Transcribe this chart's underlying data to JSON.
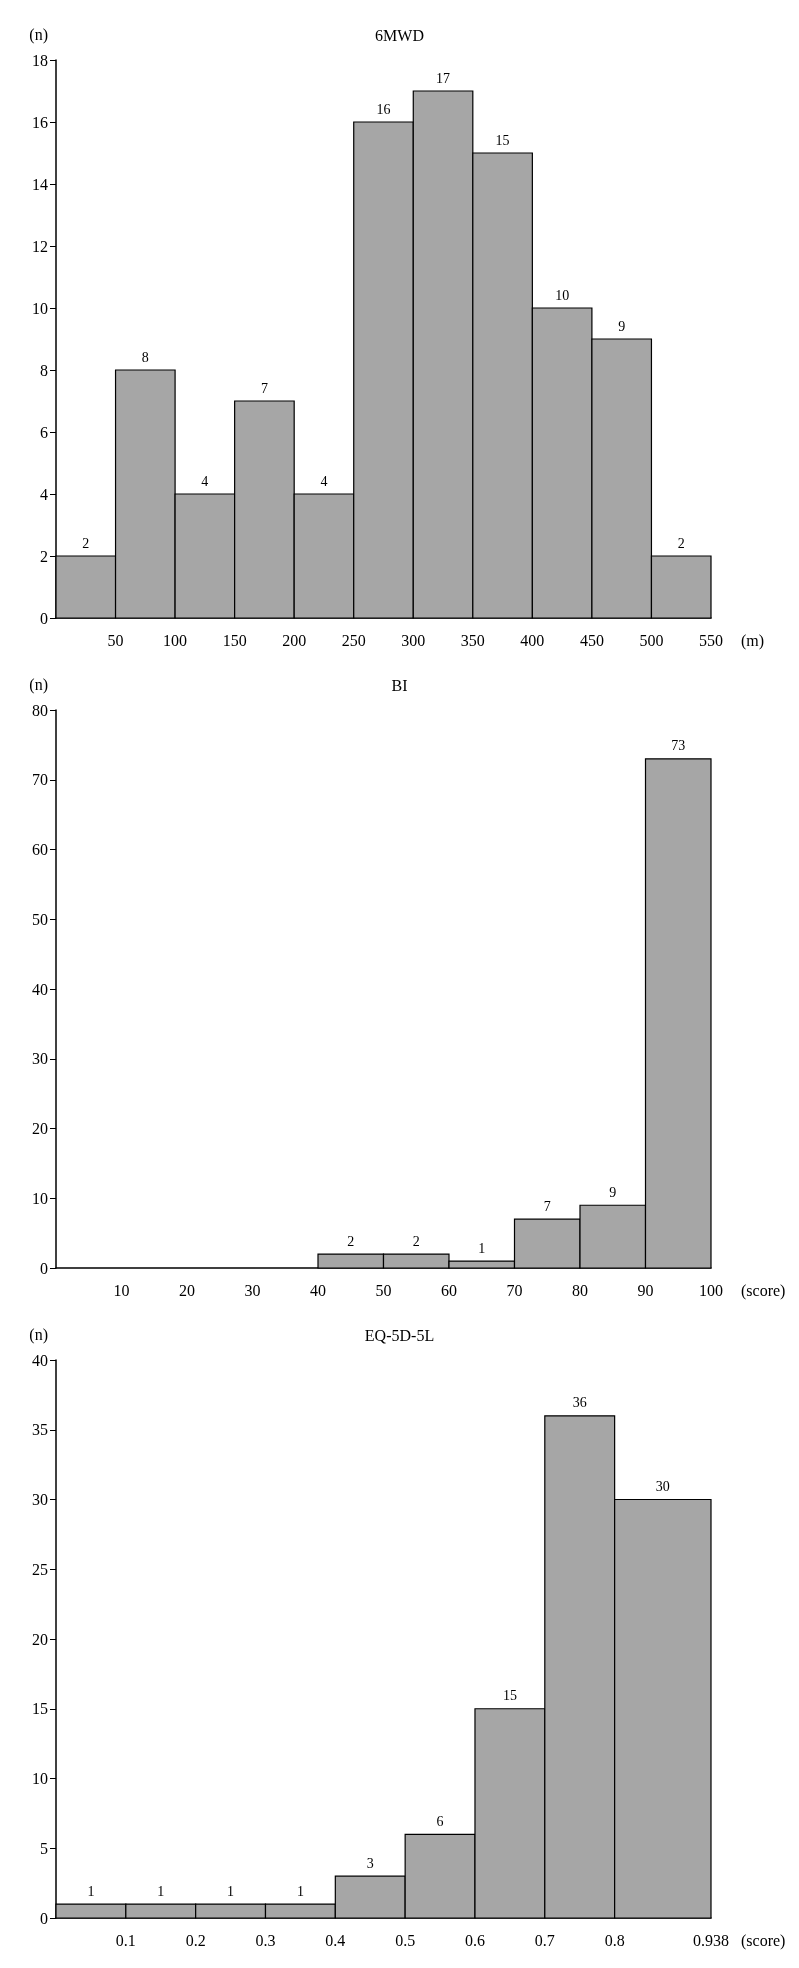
{
  "chart_data": [
    {
      "type": "histogram",
      "title": "6MWD",
      "xlabel": "(m)",
      "ylabel": "(n)",
      "bins": [
        0,
        50,
        100,
        150,
        200,
        250,
        300,
        350,
        400,
        450,
        500,
        550
      ],
      "values": [
        2,
        8,
        4,
        7,
        4,
        16,
        17,
        15,
        10,
        9,
        2
      ],
      "color": "#a6a6a6",
      "xlim": [
        0,
        550
      ],
      "xticks": [
        50,
        100,
        150,
        200,
        250,
        300,
        350,
        400,
        450,
        500,
        550
      ],
      "ylim": [
        0,
        18
      ],
      "yticks": [
        0,
        2,
        4,
        6,
        8,
        10,
        12,
        14,
        16,
        18
      ],
      "data_labels": true,
      "grid": false
    },
    {
      "type": "histogram",
      "title": "BI",
      "xlabel": "(score)",
      "ylabel": "(n)",
      "bins": [
        0,
        10,
        20,
        30,
        40,
        50,
        60,
        70,
        80,
        90,
        100
      ],
      "values": [
        0,
        0,
        0,
        0,
        2,
        2,
        1,
        7,
        9,
        73
      ],
      "value_labels": [
        null,
        null,
        null,
        null,
        "2",
        "2",
        "1",
        "7",
        "9",
        "73"
      ],
      "color": "#a6a6a6",
      "xlim": [
        0,
        100
      ],
      "xticks": [
        10,
        20,
        30,
        40,
        50,
        60,
        70,
        80,
        90,
        100
      ],
      "ylim": [
        0,
        80
      ],
      "yticks": [
        0,
        10,
        20,
        30,
        40,
        50,
        60,
        70,
        80
      ],
      "grid": false
    },
    {
      "type": "histogram",
      "title": "EQ-5D-5L",
      "xlabel": "(score)",
      "ylabel": "(n)",
      "bins": [
        0,
        0.1,
        0.2,
        0.3,
        0.4,
        0.5,
        0.6,
        0.7,
        0.8,
        0.938
      ],
      "values": [
        1,
        1,
        1,
        1,
        3,
        6,
        15,
        36,
        30
      ],
      "color": "#a6a6a6",
      "xlim": [
        0,
        0.938
      ],
      "xticks": [
        0.1,
        0.2,
        0.3,
        0.4,
        0.5,
        0.6,
        0.7,
        0.8,
        0.938
      ],
      "ylim": [
        0,
        40
      ],
      "yticks": [
        0,
        5,
        10,
        15,
        20,
        25,
        30,
        35,
        40
      ],
      "data_labels": true,
      "grid": false
    }
  ]
}
